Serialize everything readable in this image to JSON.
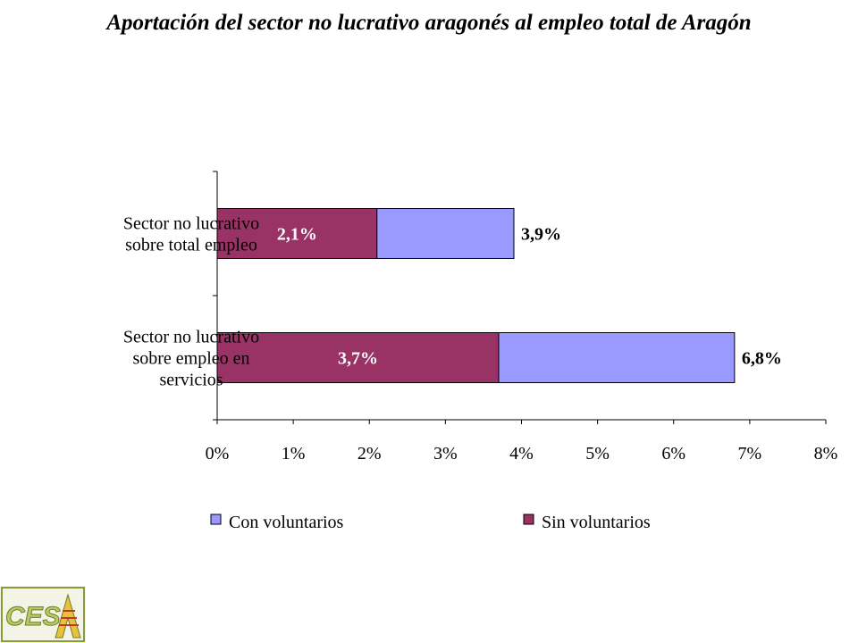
{
  "title": "Aportación del sector no lucrativo aragonés al empleo total de Aragón",
  "logo": {
    "text": "CESA"
  },
  "colors": {
    "con_voluntarios": "#9999ff",
    "sin_voluntarios": "#993366"
  },
  "chart_data": {
    "type": "bar",
    "orientation": "horizontal",
    "stacked": true,
    "categories": [
      [
        "Sector no lucrativo",
        "sobre total empleo"
      ],
      [
        "Sector no lucrativo",
        "sobre empleo en",
        "servicios"
      ]
    ],
    "series": [
      {
        "name": "Sin voluntarios",
        "values": [
          2.1,
          3.7
        ],
        "labels": [
          "2,1%",
          "3,7%"
        ],
        "color": "#993366"
      },
      {
        "name": "Con voluntarios",
        "values": [
          1.8,
          3.1
        ],
        "color": "#9999ff"
      }
    ],
    "totals": {
      "values": [
        3.9,
        6.8
      ],
      "labels": [
        "3,9%",
        "6,8%"
      ]
    },
    "xlim": [
      0,
      8
    ],
    "xticks": [
      "0%",
      "1%",
      "2%",
      "3%",
      "4%",
      "5%",
      "6%",
      "7%",
      "8%"
    ],
    "grid": false,
    "legend": {
      "position": "bottom",
      "entries": [
        {
          "name": "Con voluntarios",
          "color": "#9999ff"
        },
        {
          "name": "Sin voluntarios",
          "color": "#993366"
        }
      ]
    }
  }
}
